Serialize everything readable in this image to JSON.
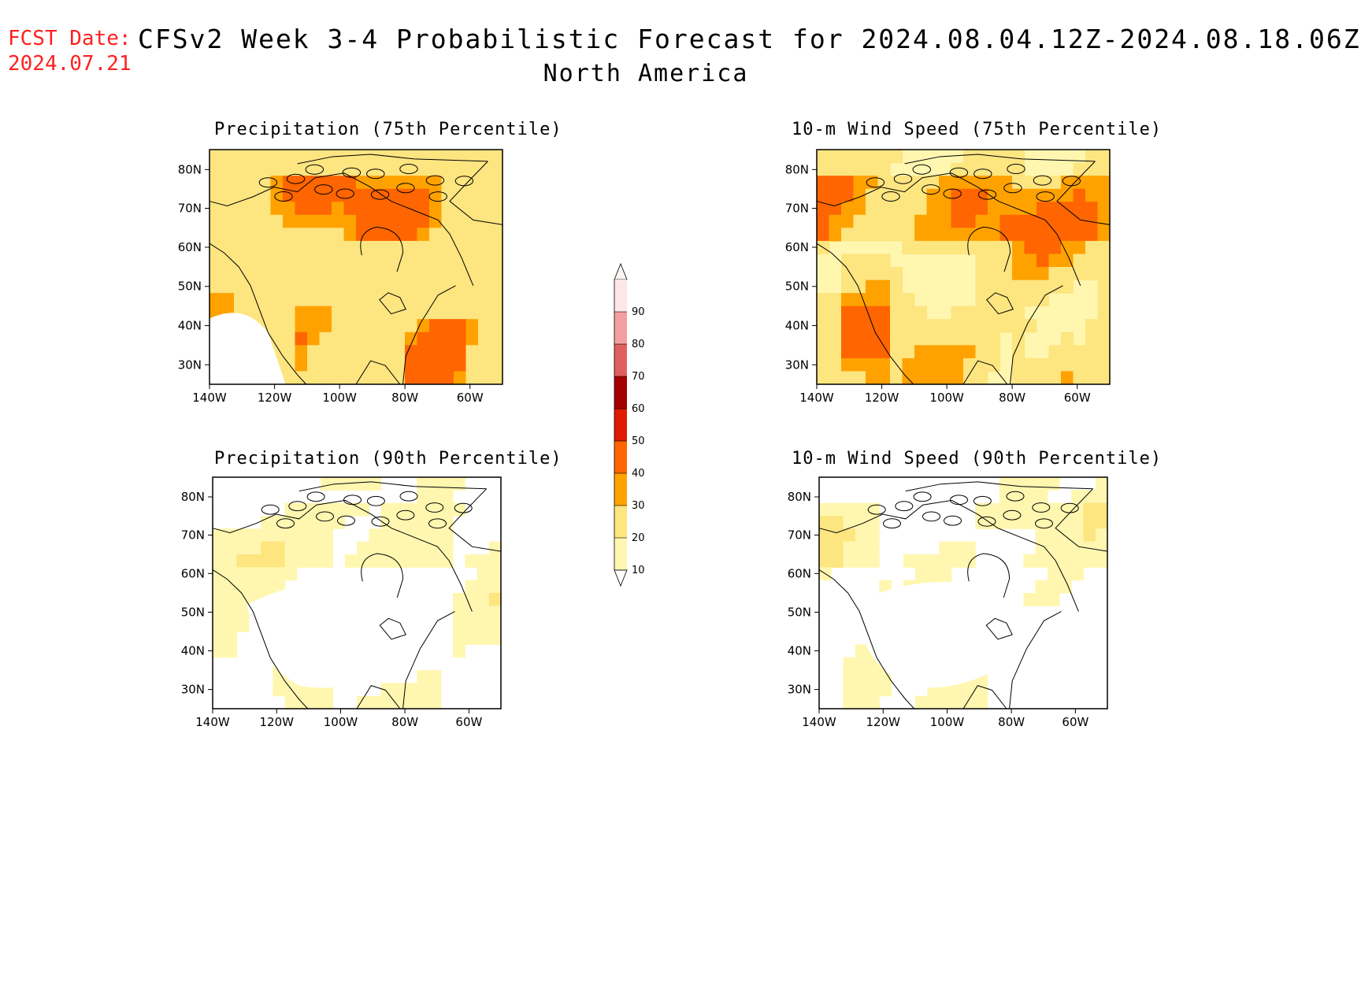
{
  "header": {
    "fcst_label": "FCST Date:",
    "fcst_date": "2024.07.21",
    "title": "CFSv2 Week 3-4 Probabilistic Forecast for 2024.08.04.12Z-2024.08.18.06Z",
    "region": "North America"
  },
  "axes": {
    "lon_ticks": [
      "140W",
      "120W",
      "100W",
      "80W",
      "60W"
    ],
    "lat_ticks": [
      "80N",
      "70N",
      "60N",
      "50N",
      "40N",
      "30N"
    ]
  },
  "panels": [
    {
      "title": "Precipitation (75th Percentile)",
      "variable": "precipitation",
      "percentile": 75
    },
    {
      "title": "10-m Wind Speed (75th Percentile)",
      "variable": "wind",
      "percentile": 75
    },
    {
      "title": "Precipitation (90th Percentile)",
      "variable": "precipitation",
      "percentile": 90
    },
    {
      "title": "10-m Wind Speed (90th Percentile)",
      "variable": "wind",
      "percentile": 90
    }
  ],
  "colorbar": {
    "labels": [
      "10",
      "20",
      "30",
      "40",
      "50",
      "60",
      "70",
      "80",
      "90"
    ],
    "colors": [
      "#fff7b0",
      "#fde580",
      "#ffa200",
      "#ff6500",
      "#e01a00",
      "#a50000",
      "#e06060",
      "#f4a0a0",
      "#fde6e6"
    ]
  }
}
